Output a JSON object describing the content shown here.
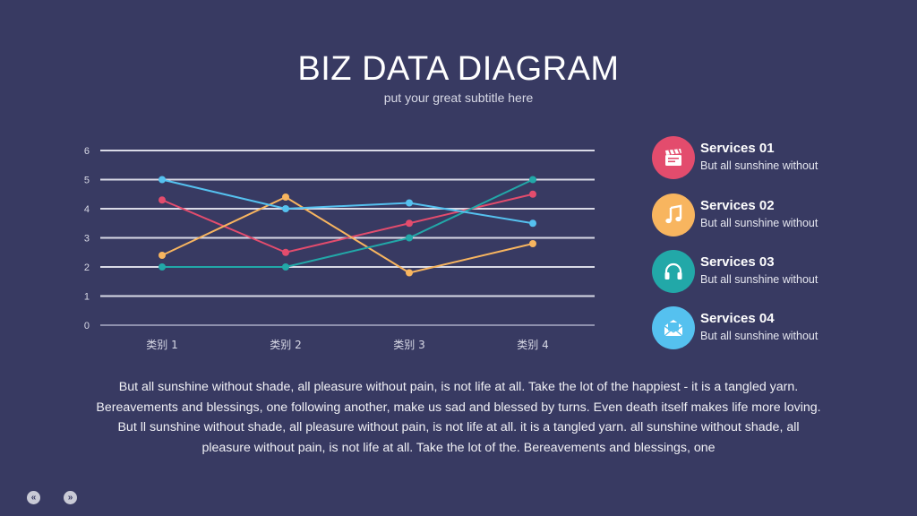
{
  "header": {
    "title": "BIZ DATA DIAGRAM",
    "subtitle": "put your great subtitle here"
  },
  "chart_data": {
    "type": "line",
    "categories": [
      "类别 1",
      "类别 2",
      "类别 3",
      "类别 4"
    ],
    "ylim": [
      0,
      6
    ],
    "yticks": [
      0,
      1,
      2,
      3,
      4,
      5,
      6
    ],
    "grid": true,
    "series": [
      {
        "color": "#e34c6d",
        "values": [
          4.3,
          2.5,
          3.5,
          4.5
        ]
      },
      {
        "color": "#f8b55f",
        "values": [
          2.4,
          4.4,
          1.8,
          2.8
        ]
      },
      {
        "color": "#22a8a8",
        "values": [
          2.0,
          2.0,
          3.0,
          5.0
        ]
      },
      {
        "color": "#55c1ef",
        "values": [
          5.0,
          4.0,
          4.2,
          3.5
        ]
      }
    ]
  },
  "services": [
    {
      "title": "Services 01",
      "desc": "But all sunshine without",
      "icon": "clapperboard-icon",
      "color": "#e34c6d"
    },
    {
      "title": "Services 02",
      "desc": "But all sunshine without",
      "icon": "music-note-icon",
      "color": "#f8b55f"
    },
    {
      "title": "Services 03",
      "desc": "But all sunshine without",
      "icon": "headphones-icon",
      "color": "#22a8a8"
    },
    {
      "title": "Services 04",
      "desc": "But all sunshine without",
      "icon": "mail-icon",
      "color": "#55c1ef"
    }
  ],
  "body": {
    "line1": "But all sunshine without shade, all pleasure without pain, is not life at all. Take the lot of the happiest - it is a tangled yarn.",
    "line2": "Bereavements and blessings, one following another, make us sad and blessed by turns. Even death itself makes life more loving.",
    "line3": "But ll sunshine without shade, all pleasure without pain, is not life at all. it is a tangled yarn. all sunshine without shade, all",
    "line4": "pleasure without pain, is not life at all. Take the lot of the. Bereavements and blessings, one"
  },
  "nav": {
    "prev": "«",
    "next": "»"
  },
  "colors": {
    "background": "#383a62",
    "grid": "#d9dae6"
  }
}
